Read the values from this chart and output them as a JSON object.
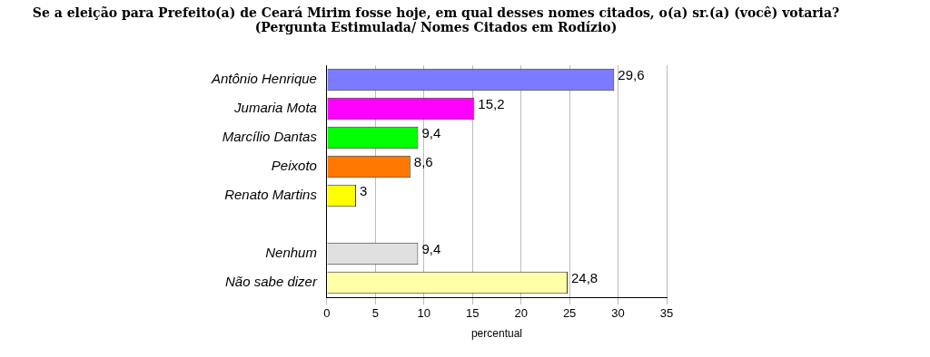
{
  "chart_data": {
    "type": "bar",
    "orientation": "horizontal",
    "title": "Se a eleição para Prefeito(a) de Ceará Mirim fosse hoje, em qual desses nomes citados, o(a) sr.(a) (você) votaria?",
    "subtitle": "(Pergunta Estimulada/ Nomes Citados em Rodízio)",
    "xlabel": "percentual",
    "categories": [
      "Antônio Henrique",
      "Jumaria Mota",
      "Marcílio Dantas",
      "Peixoto",
      "Renato Martins",
      null,
      "Nenhum",
      "Não sabe dizer"
    ],
    "values": [
      29.6,
      15.2,
      9.4,
      8.6,
      3,
      null,
      9.4,
      24.8
    ],
    "colors": [
      "#7b7bff",
      "#ff00ff",
      "#00ff00",
      "#ff7800",
      "#ffff00",
      "#cccccc",
      "#e0e0e0",
      "#ffffa8"
    ],
    "value_labels": [
      "29,6",
      "15,2",
      "9,4",
      "8,6",
      "3",
      null,
      "9,4",
      "24,8"
    ],
    "xlim": [
      0,
      35
    ],
    "xticks": [
      0,
      5,
      10,
      15,
      20,
      25,
      30,
      35
    ],
    "grid": "x",
    "legend": false
  }
}
